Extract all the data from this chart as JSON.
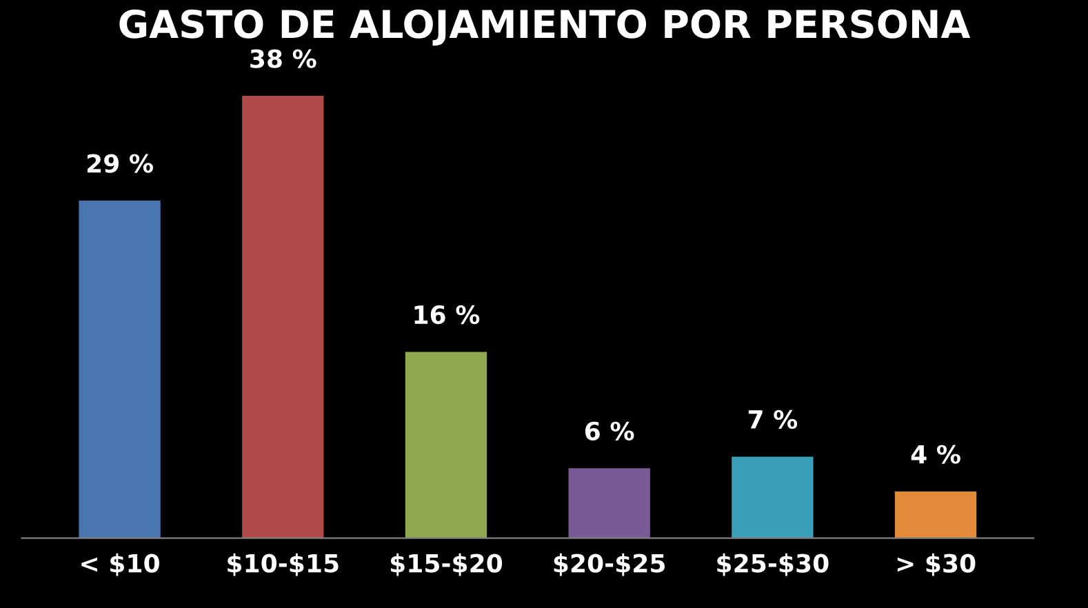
{
  "chart_data": {
    "type": "bar",
    "title": "GASTO DE ALOJAMIENTO POR PERSONA",
    "categories": [
      "< $10",
      "$10-$15",
      "$15-$20",
      "$20-$25",
      "$25-$30",
      "> $30"
    ],
    "values": [
      29,
      38,
      16,
      6,
      7,
      4
    ],
    "colors": [
      "#4a76b0",
      "#b04a48",
      "#8ea84e",
      "#7a5a96",
      "#3a9fb8",
      "#e08a3a"
    ],
    "value_labels": [
      "29 %",
      "38 %",
      "16 %",
      "6 %",
      "7 %",
      "4 %"
    ],
    "grid": false,
    "legend": false
  }
}
